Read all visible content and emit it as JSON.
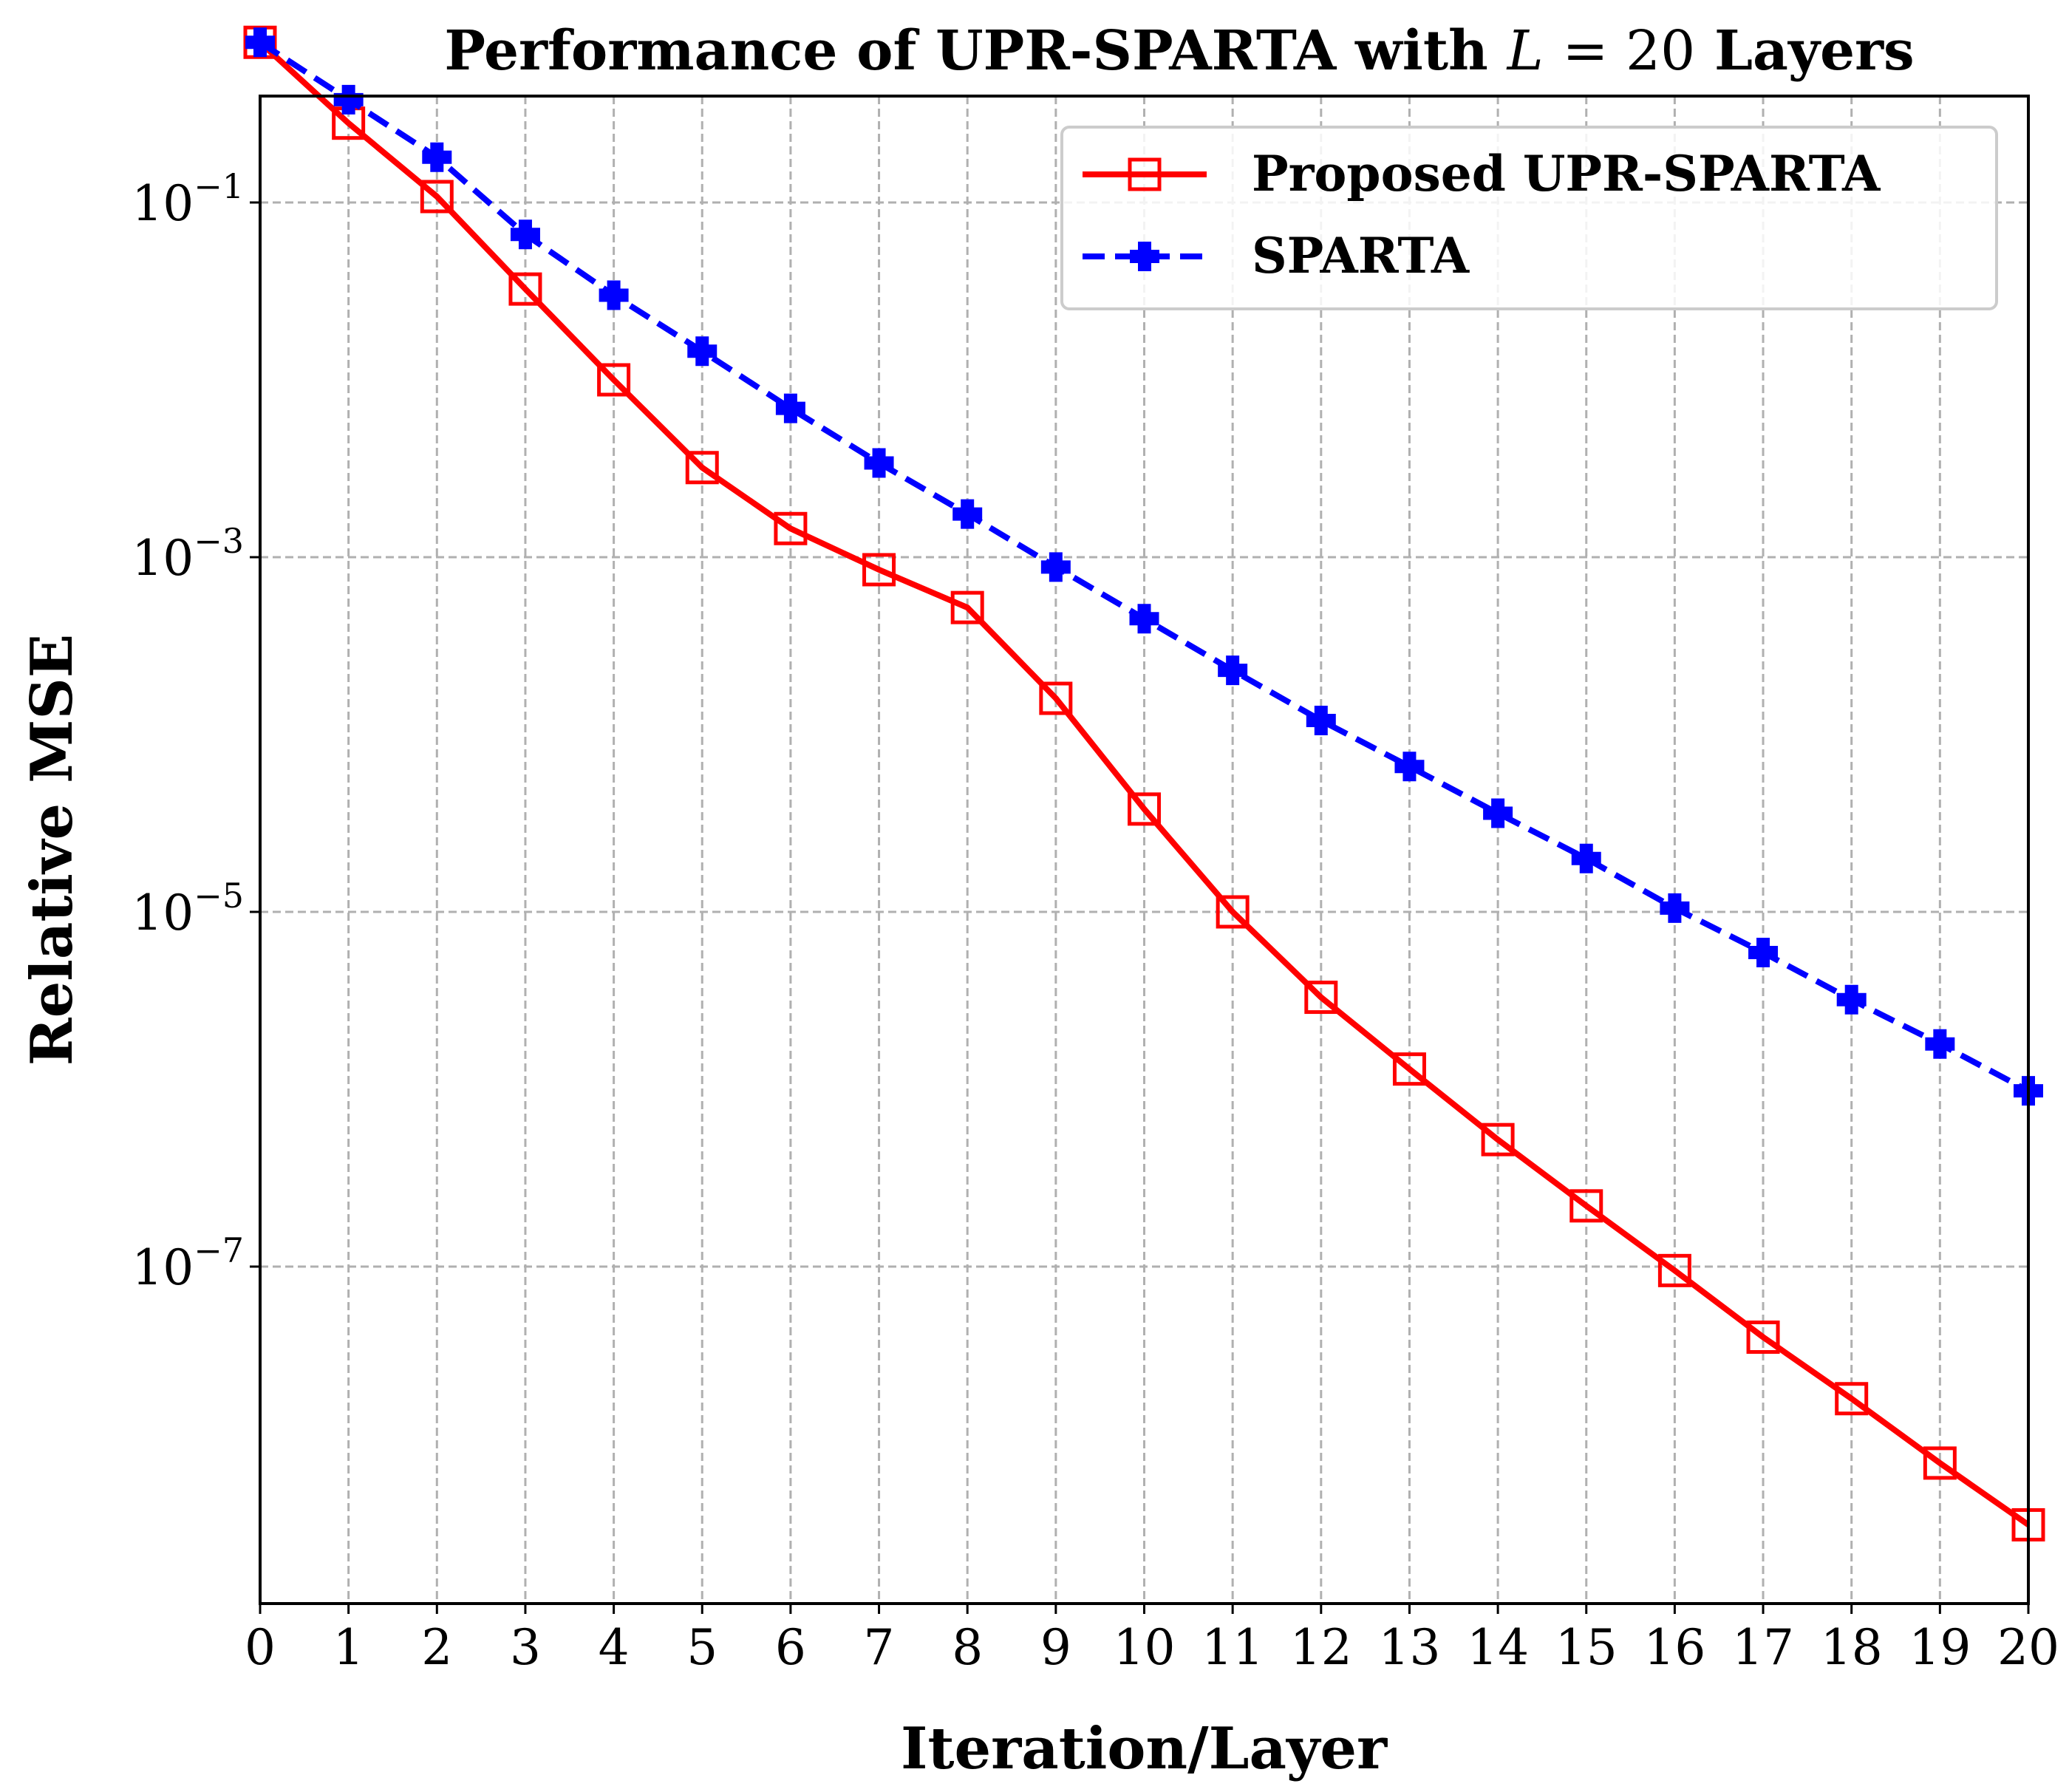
{
  "chart_data": {
    "type": "line",
    "title_prefix": "Performance of UPR-SPARTA with",
    "title_var": "L",
    "title_eq": "= 20",
    "title_suffix": "Layers",
    "xlabel": "Iteration/Layer",
    "ylabel": "Relative MSE",
    "xscale": "linear",
    "yscale": "log",
    "xlim": [
      0,
      20
    ],
    "ylim_log10": [
      -8.9,
      -0.4
    ],
    "grid": true,
    "legend_position": "top-right",
    "x": [
      0,
      1,
      2,
      3,
      4,
      5,
      6,
      7,
      8,
      9,
      10,
      11,
      12,
      13,
      14,
      15,
      16,
      17,
      18,
      19,
      20
    ],
    "x_tick_labels": [
      "0",
      "1",
      "2",
      "3",
      "4",
      "5",
      "6",
      "7",
      "8",
      "9",
      "10",
      "11",
      "12",
      "13",
      "14",
      "15",
      "16",
      "17",
      "18",
      "19",
      "20"
    ],
    "y_ticks": [
      {
        "base": "10",
        "exp": "−1",
        "log10": -1
      },
      {
        "base": "10",
        "exp": "−3",
        "log10": -3
      },
      {
        "base": "10",
        "exp": "−5",
        "log10": -5
      },
      {
        "base": "10",
        "exp": "−7",
        "log10": -7
      }
    ],
    "series": [
      {
        "name": "Proposed UPR-SPARTA",
        "color": "#ff0000",
        "line_style": "solid",
        "marker": "square-open",
        "values": [
          0.8,
          0.28,
          0.108,
          0.0325,
          0.01,
          0.0032,
          0.00145,
          0.00085,
          0.00052,
          0.00016,
          3.8e-05,
          1e-05,
          3.3e-06,
          1.3e-06,
          5.2e-07,
          2.2e-07,
          9.5e-08,
          4e-08,
          1.8e-08,
          7.8e-09,
          3.5e-09
        ]
      },
      {
        "name": "SPARTA",
        "color": "#0000ff",
        "line_style": "dashed",
        "marker": "plus-filled",
        "values": [
          0.8,
          0.38,
          0.18,
          0.066,
          0.03,
          0.0145,
          0.0069,
          0.0034,
          0.00175,
          0.00088,
          0.00045,
          0.00023,
          0.00012,
          6.6e-05,
          3.6e-05,
          2e-05,
          1.05e-05,
          5.9e-06,
          3.2e-06,
          1.8e-06,
          9.8e-07
        ]
      }
    ]
  }
}
